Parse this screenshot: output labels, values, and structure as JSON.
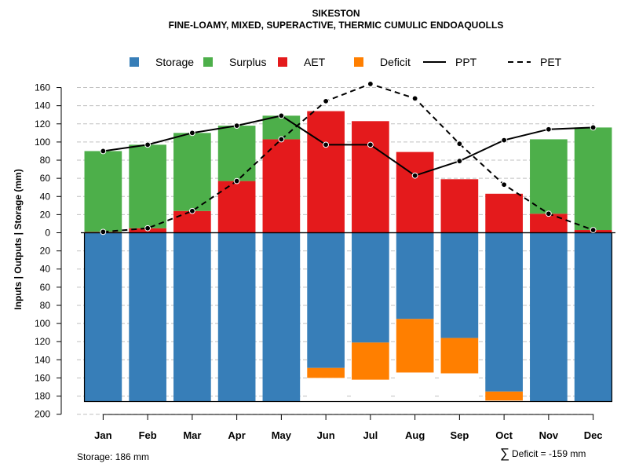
{
  "chart_data": {
    "type": "bar",
    "title": "SIKESTON",
    "subtitle": "FINE-LOAMY, MIXED, SUPERACTIVE, THERMIC CUMULIC ENDOAQUOLLS",
    "ylabel": "Inputs | Outputs | Storage    (mm)",
    "ylim": [
      -200,
      170
    ],
    "yticks": [
      160,
      140,
      120,
      100,
      80,
      60,
      40,
      20,
      0,
      -20,
      -40,
      -60,
      -80,
      -100,
      -120,
      -140,
      -160,
      -180,
      -200
    ],
    "ytick_labels": [
      "160",
      "140",
      "120",
      "100",
      "80",
      "60",
      "40",
      "20",
      "0",
      "20",
      "40",
      "60",
      "80",
      "100",
      "120",
      "140",
      "160",
      "180",
      "200"
    ],
    "categories": [
      "Jan",
      "Feb",
      "Mar",
      "Apr",
      "May",
      "Jun",
      "Jul",
      "Aug",
      "Sep",
      "Oct",
      "Nov",
      "Dec"
    ],
    "legend": [
      {
        "label": "Storage",
        "color": "#377eb8",
        "kind": "box"
      },
      {
        "label": "Surplus",
        "color": "#4daf4a",
        "kind": "box"
      },
      {
        "label": "AET",
        "color": "#e41a1c",
        "kind": "box"
      },
      {
        "label": "Deficit",
        "color": "#ff7f00",
        "kind": "box"
      },
      {
        "label": "PPT",
        "color": "#000000",
        "kind": "solid"
      },
      {
        "label": "PET",
        "color": "#000000",
        "kind": "dashed"
      }
    ],
    "series": [
      {
        "name": "AET",
        "color": "#e41a1c",
        "values": [
          1,
          5,
          24,
          57,
          103,
          134,
          123,
          89,
          59,
          43,
          21,
          3
        ]
      },
      {
        "name": "Surplus",
        "color": "#4daf4a",
        "values": [
          89,
          92,
          86,
          61,
          26,
          0,
          0,
          0,
          0,
          0,
          82,
          113
        ]
      },
      {
        "name": "Storage",
        "color": "#377eb8",
        "values": [
          186,
          186,
          186,
          186,
          186,
          149,
          121,
          95,
          116,
          175,
          186,
          186
        ]
      },
      {
        "name": "Deficit",
        "color": "#ff7f00",
        "values": [
          0,
          0,
          0,
          0,
          0,
          11,
          41,
          59,
          39,
          10,
          0,
          0
        ]
      },
      {
        "name": "PPT",
        "color": "#000000",
        "values": [
          90,
          97,
          110,
          118,
          129,
          97,
          97,
          63,
          79,
          102,
          114,
          116
        ]
      },
      {
        "name": "PET",
        "color": "#000000",
        "values": [
          1,
          5,
          24,
          57,
          103,
          145,
          164,
          148,
          98,
          53,
          21,
          3
        ]
      }
    ],
    "storage_capacity": 186,
    "storage_label": "Storage: 186 mm",
    "deficit_symbol": "∑",
    "deficit_label": "Deficit = -159 mm"
  }
}
